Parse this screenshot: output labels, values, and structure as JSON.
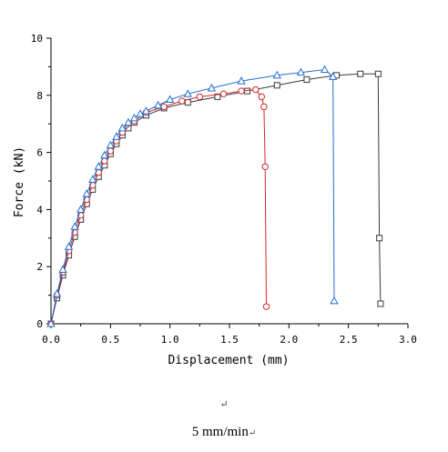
{
  "chart_data": {
    "type": "line",
    "title": "",
    "xlabel": "Displacement (mm)",
    "ylabel": "Force (kN)",
    "xlim": [
      0,
      3.0
    ],
    "ylim": [
      0,
      10
    ],
    "xticks": [
      "0.0",
      "0.5",
      "1.0",
      "1.5",
      "2.0",
      "2.5",
      "3.0"
    ],
    "yticks": [
      "0",
      "2",
      "4",
      "6",
      "8",
      "10"
    ],
    "grid": false,
    "legend": "none",
    "series": [
      {
        "marker": "square",
        "color": "#3a3a3a",
        "x": [
          0.0,
          0.05,
          0.1,
          0.15,
          0.2,
          0.25,
          0.3,
          0.35,
          0.4,
          0.45,
          0.5,
          0.55,
          0.6,
          0.65,
          0.7,
          0.8,
          0.95,
          1.15,
          1.4,
          1.65,
          1.9,
          2.15,
          2.4,
          2.6,
          2.75,
          2.76,
          2.77
        ],
        "y": [
          0.0,
          0.9,
          1.7,
          2.4,
          3.05,
          3.65,
          4.2,
          4.7,
          5.15,
          5.55,
          5.95,
          6.3,
          6.6,
          6.85,
          7.05,
          7.3,
          7.55,
          7.75,
          7.95,
          8.15,
          8.35,
          8.55,
          8.7,
          8.75,
          8.75,
          3.0,
          0.7
        ]
      },
      {
        "marker": "circle",
        "color": "#d62728",
        "x": [
          0.0,
          0.05,
          0.1,
          0.15,
          0.2,
          0.25,
          0.3,
          0.35,
          0.4,
          0.45,
          0.5,
          0.55,
          0.6,
          0.7,
          0.8,
          0.95,
          1.1,
          1.25,
          1.45,
          1.6,
          1.72,
          1.77,
          1.79,
          1.8,
          1.81
        ],
        "y": [
          0.0,
          1.0,
          1.8,
          2.55,
          3.2,
          3.8,
          4.35,
          4.85,
          5.3,
          5.7,
          6.05,
          6.4,
          6.7,
          7.1,
          7.4,
          7.6,
          7.8,
          7.95,
          8.05,
          8.15,
          8.2,
          7.95,
          7.6,
          5.5,
          0.6
        ]
      },
      {
        "marker": "triangle",
        "color": "#1f6fd1",
        "x": [
          0.0,
          0.05,
          0.1,
          0.15,
          0.2,
          0.25,
          0.3,
          0.35,
          0.4,
          0.45,
          0.5,
          0.55,
          0.6,
          0.65,
          0.7,
          0.75,
          0.8,
          0.9,
          1.0,
          1.15,
          1.35,
          1.6,
          1.9,
          2.1,
          2.3,
          2.37,
          2.38
        ],
        "y": [
          0.0,
          1.05,
          1.9,
          2.7,
          3.4,
          4.0,
          4.55,
          5.05,
          5.5,
          5.9,
          6.25,
          6.55,
          6.85,
          7.05,
          7.2,
          7.35,
          7.45,
          7.65,
          7.85,
          8.05,
          8.25,
          8.5,
          8.7,
          8.8,
          8.9,
          8.65,
          0.8
        ]
      }
    ]
  },
  "caption": {
    "para_mark": "↵",
    "text": "5 mm/min",
    "return_mark": "↵"
  }
}
